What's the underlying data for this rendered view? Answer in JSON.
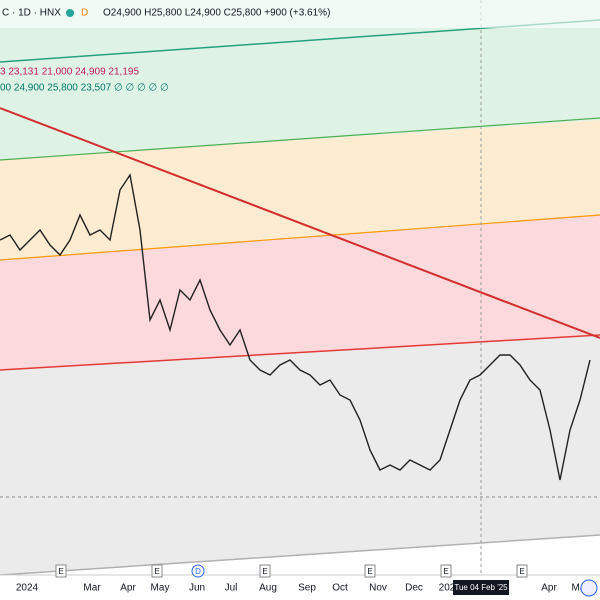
{
  "header": {
    "symbol": "C · 1D · HNX",
    "flag": "D",
    "ohlc": "O24,900 H25,800 L24,900 C25,800 +900 (+3.61%)"
  },
  "indicators": [
    "3   23,131   21,000   24,909   21,195",
    "00   24,900   25,800   23,507   ∅ ∅ ∅ ∅ ∅"
  ],
  "chart_data": {
    "type": "line",
    "color": "#222222",
    "ylim": [
      13800,
      43800
    ],
    "values": [
      31800,
      32050,
      31300,
      31800,
      32300,
      31550,
      31050,
      31800,
      33050,
      32050,
      32300,
      31800,
      34300,
      35050,
      32300,
      27800,
      28800,
      27300,
      29300,
      28800,
      29800,
      28300,
      27300,
      26550,
      27300,
      25800,
      25300,
      25050,
      25550,
      25800,
      25300,
      25050,
      24550,
      24800,
      24050,
      23800,
      22800,
      21300,
      20300,
      20550,
      20300,
      20800,
      20550,
      20300,
      20800,
      22300,
      23800,
      24800,
      25050,
      25550,
      26050,
      26050,
      25550,
      24800,
      24300,
      22300,
      19800,
      22300,
      23800,
      25800
    ]
  },
  "x_labels": [
    "2024",
    "Mar",
    "Apr",
    "May",
    "Jun",
    "Jul",
    "Aug",
    "Sep",
    "Oct",
    "Nov",
    "Dec",
    "202",
    "Tue 04 Feb '25",
    "Apr",
    "May"
  ],
  "event_markers": [
    "E",
    "E",
    "D",
    "E",
    "E",
    "E",
    "E"
  ]
}
